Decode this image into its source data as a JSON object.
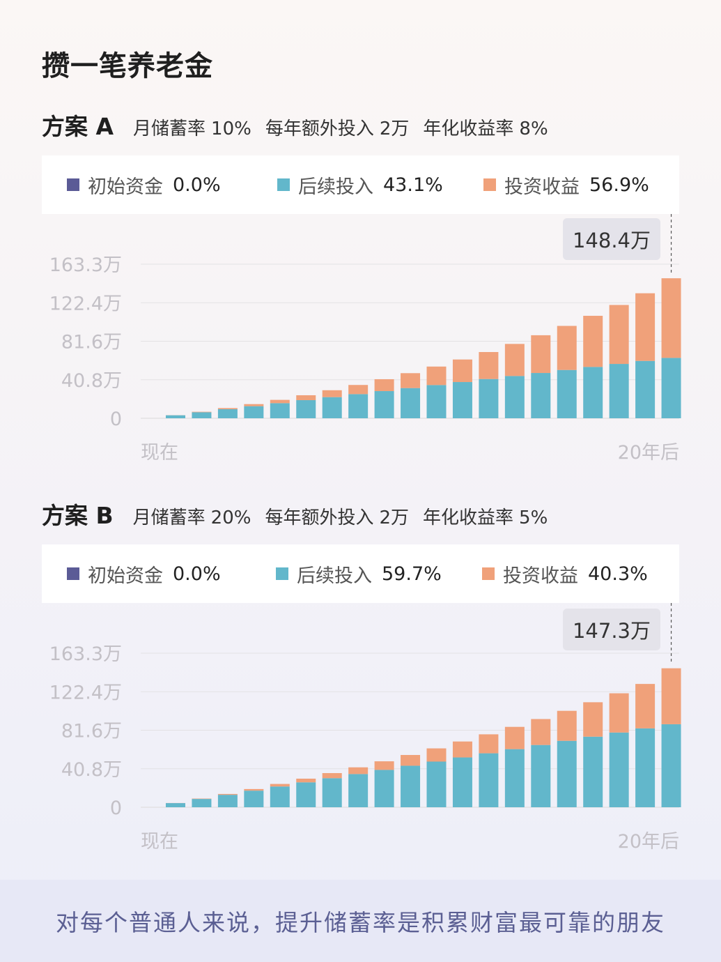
{
  "title": "攒一笔养老金",
  "footer": "对每个普通人来说，提升储蓄率是积累财富最可靠的朋友",
  "colors": {
    "initial": "#5b5b96",
    "contrib": "#62b7cb",
    "gain": "#f0a17a",
    "grid": "#e3e1e4",
    "tick": "#c3c0c6"
  },
  "plans": [
    {
      "name": "方案 A",
      "params": [
        {
          "label": "月储蓄率",
          "value": "10%"
        },
        {
          "label": "每年额外投入",
          "value": "2万"
        },
        {
          "label": "年化收益率",
          "value": "8%"
        }
      ],
      "legend": [
        {
          "label": "初始资金",
          "value": "0.0%",
          "color": "#5b5b96"
        },
        {
          "label": "后续投入",
          "value": "43.1%",
          "color": "#62b7cb"
        },
        {
          "label": "投资收益",
          "value": "56.9%",
          "color": "#f0a17a"
        }
      ],
      "callout": "148.4万",
      "chart_data": {
        "type": "bar",
        "stacked": true,
        "x_start_label": "现在",
        "x_end_label": "20年后",
        "yticks": [
          "0",
          "40.8万",
          "81.6万",
          "122.4万",
          "163.3万"
        ],
        "ylim": [
          0,
          163.3
        ],
        "grid": true,
        "series": [
          {
            "name": "初始资金",
            "values": [
              0,
              0,
              0,
              0,
              0,
              0,
              0,
              0,
              0,
              0,
              0,
              0,
              0,
              0,
              0,
              0,
              0,
              0,
              0,
              0
            ]
          },
          {
            "name": "后续投入",
            "values": [
              3.2,
              6.4,
              9.6,
              12.8,
              16.0,
              19.2,
              22.4,
              25.6,
              28.8,
              32.0,
              35.2,
              38.4,
              41.6,
              44.8,
              48.0,
              51.2,
              54.4,
              57.6,
              60.8,
              64.0
            ]
          },
          {
            "name": "投资收益",
            "values": [
              0.1,
              0.5,
              1.2,
              2.2,
              3.5,
              5.2,
              7.3,
              9.7,
              12.6,
              15.8,
              19.6,
              23.9,
              28.6,
              34.0,
              40.0,
              46.7,
              54.2,
              62.5,
              71.7,
              84.4
            ]
          }
        ]
      }
    },
    {
      "name": "方案 B",
      "params": [
        {
          "label": "月储蓄率",
          "value": "20%"
        },
        {
          "label": "每年额外投入",
          "value": "2万"
        },
        {
          "label": "年化收益率",
          "value": "5%"
        }
      ],
      "legend": [
        {
          "label": "初始资金",
          "value": "0.0%",
          "color": "#5b5b96"
        },
        {
          "label": "后续投入",
          "value": "59.7%",
          "color": "#62b7cb"
        },
        {
          "label": "投资收益",
          "value": "40.3%",
          "color": "#f0a17a"
        }
      ],
      "callout": "147.3万",
      "chart_data": {
        "type": "bar",
        "stacked": true,
        "x_start_label": "现在",
        "x_end_label": "20年后",
        "yticks": [
          "0",
          "40.8万",
          "81.6万",
          "122.4万",
          "163.3万"
        ],
        "ylim": [
          0,
          163.3
        ],
        "grid": true,
        "series": [
          {
            "name": "初始资金",
            "values": [
              0,
              0,
              0,
              0,
              0,
              0,
              0,
              0,
              0,
              0,
              0,
              0,
              0,
              0,
              0,
              0,
              0,
              0,
              0,
              0
            ]
          },
          {
            "name": "后续投入",
            "values": [
              4.4,
              8.8,
              13.2,
              17.6,
              22.0,
              26.4,
              30.8,
              35.2,
              39.6,
              44.0,
              48.4,
              52.8,
              57.2,
              61.6,
              66.0,
              70.4,
              74.8,
              79.2,
              83.6,
              88.0
            ]
          },
          {
            "name": "投资收益",
            "values": [
              0.1,
              0.4,
              0.9,
              1.7,
              2.7,
              3.9,
              5.4,
              7.1,
              9.1,
              11.4,
              14.0,
              16.9,
              20.1,
              23.6,
              27.5,
              31.8,
              36.5,
              41.6,
              47.1,
              59.3
            ]
          }
        ]
      }
    }
  ]
}
